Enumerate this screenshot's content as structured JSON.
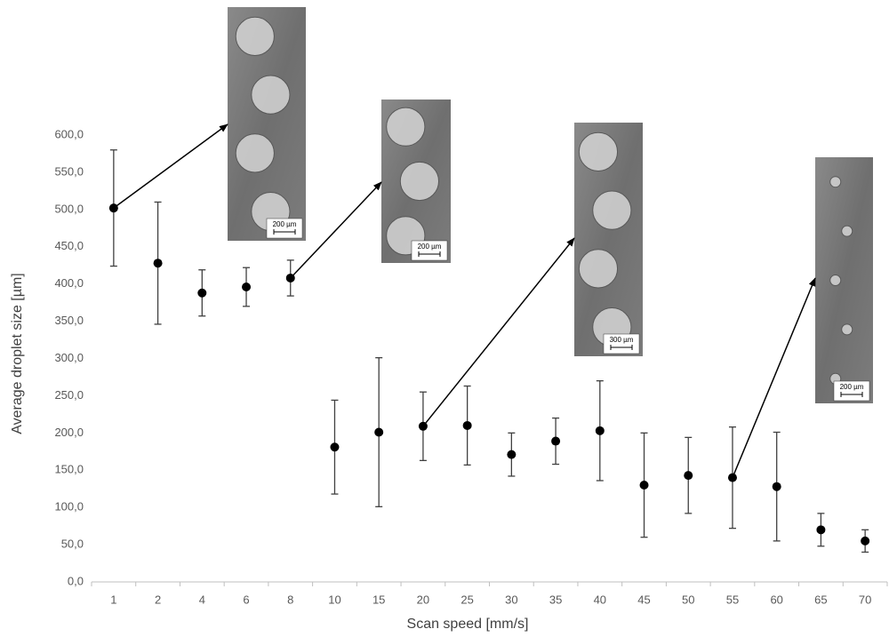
{
  "chart_data": {
    "type": "scatter",
    "x_label": "Scan speed [mm/s]",
    "y_label": "Average droplet size [µm]",
    "categories": [
      "1",
      "2",
      "4",
      "6",
      "8",
      "10",
      "15",
      "20",
      "25",
      "30",
      "35",
      "40",
      "45",
      "50",
      "55",
      "60",
      "65",
      "70"
    ],
    "values": [
      502,
      428,
      388,
      396,
      408,
      181,
      201,
      209,
      210,
      171,
      189,
      203,
      130,
      143,
      140,
      128,
      70,
      55
    ],
    "errors": [
      78,
      82,
      31,
      26,
      24,
      63,
      100,
      46,
      53,
      29,
      31,
      67,
      70,
      51,
      68,
      73,
      22,
      15
    ],
    "color": "#000000",
    "error_color": "#404040",
    "ylim": [
      0,
      600
    ],
    "yticks": [
      {
        "value": 0,
        "label": "0,0"
      },
      {
        "value": 50,
        "label": "50,0"
      },
      {
        "value": 100,
        "label": "100,0"
      },
      {
        "value": 150,
        "label": "150,0"
      },
      {
        "value": 200,
        "label": "200,0"
      },
      {
        "value": 250,
        "label": "250,0"
      },
      {
        "value": 300,
        "label": "300,0"
      },
      {
        "value": 350,
        "label": "350,0"
      },
      {
        "value": 400,
        "label": "400,0"
      },
      {
        "value": 450,
        "label": "450,0"
      },
      {
        "value": 500,
        "label": "500,0"
      },
      {
        "value": 550,
        "label": "550,0"
      },
      {
        "value": 600,
        "label": "600,0"
      }
    ],
    "insets": [
      {
        "scale_label": "200 µm"
      },
      {
        "scale_label": "200 µm"
      },
      {
        "scale_label": "300 µm"
      },
      {
        "scale_label": "200 µm"
      }
    ]
  }
}
